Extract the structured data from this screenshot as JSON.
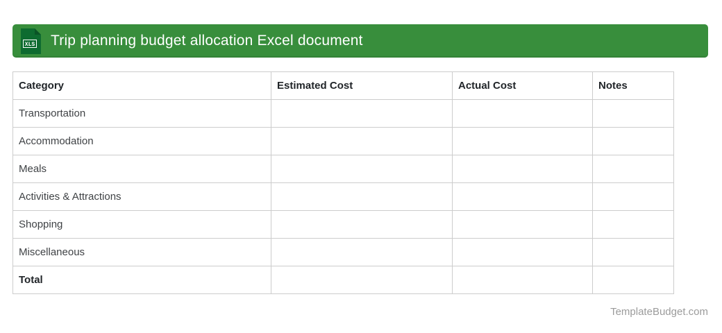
{
  "header": {
    "title": "Trip planning budget allocation Excel document",
    "icon_label": "XLS",
    "bar_color": "#388e3c",
    "icon_color": "#0e6b30",
    "icon_fold_color": "#0a5426"
  },
  "table": {
    "columns": [
      "Category",
      "Estimated Cost",
      "Actual Cost",
      "Notes"
    ],
    "rows": [
      {
        "category": "Transportation",
        "estimated_cost": "",
        "actual_cost": "",
        "notes": "",
        "bold": false
      },
      {
        "category": "Accommodation",
        "estimated_cost": "",
        "actual_cost": "",
        "notes": "",
        "bold": false
      },
      {
        "category": "Meals",
        "estimated_cost": "",
        "actual_cost": "",
        "notes": "",
        "bold": false
      },
      {
        "category": "Activities & Attractions",
        "estimated_cost": "",
        "actual_cost": "",
        "notes": "",
        "bold": false
      },
      {
        "category": "Shopping",
        "estimated_cost": "",
        "actual_cost": "",
        "notes": "",
        "bold": false
      },
      {
        "category": "Miscellaneous",
        "estimated_cost": "",
        "actual_cost": "",
        "notes": "",
        "bold": false
      },
      {
        "category": "Total",
        "estimated_cost": "",
        "actual_cost": "",
        "notes": "",
        "bold": true
      }
    ]
  },
  "footer": {
    "credit": "TemplateBudget.com"
  }
}
